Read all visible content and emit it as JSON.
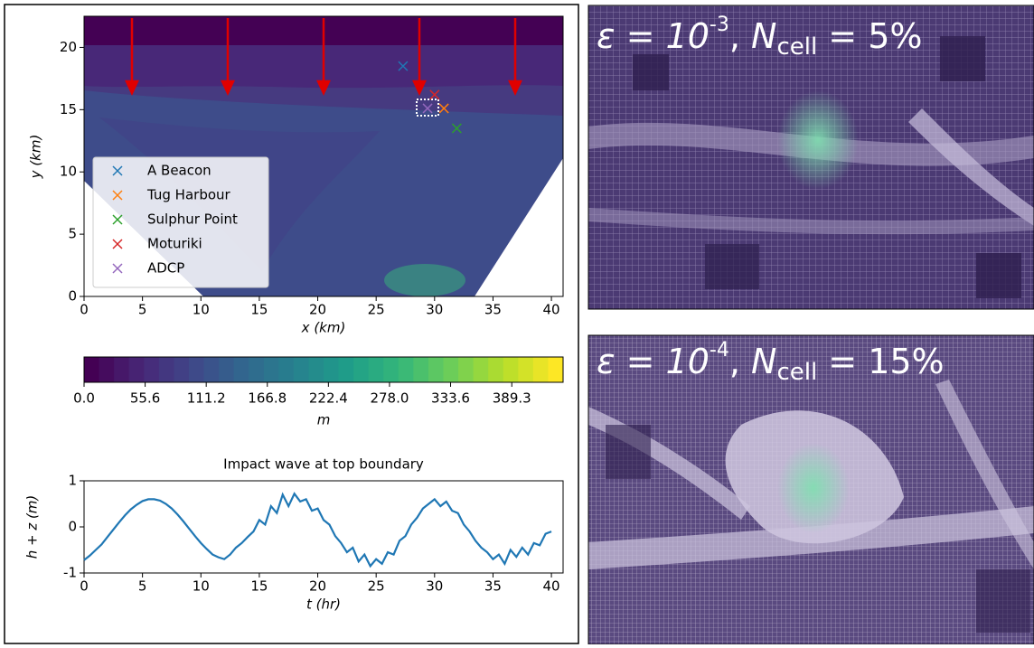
{
  "chart_data": [
    {
      "type": "scatter",
      "xlabel": "x (km)",
      "ylabel": "y (km)",
      "xlim": [
        0,
        41
      ],
      "ylim": [
        0,
        22.5
      ],
      "xticks": [
        0,
        5,
        10,
        15,
        20,
        25,
        30,
        35,
        40
      ],
      "yticks": [
        0,
        5,
        10,
        15,
        20
      ],
      "legend": "center left",
      "series": [
        {
          "name": "A Beacon",
          "color": "#1f77b4",
          "x": [
            27.3
          ],
          "values": [
            18.5
          ]
        },
        {
          "name": "Tug Harbour",
          "color": "#ff7f0e",
          "x": [
            30.8
          ],
          "values": [
            15.1
          ]
        },
        {
          "name": "Sulphur Point",
          "color": "#2ca02c",
          "x": [
            31.9
          ],
          "values": [
            13.5
          ]
        },
        {
          "name": "Moturiki",
          "color": "#d62728",
          "x": [
            30.0
          ],
          "values": [
            16.2
          ]
        },
        {
          "name": "ADCP",
          "color": "#9467bd",
          "x": [
            29.4
          ],
          "values": [
            15.1
          ]
        }
      ]
    },
    {
      "type": "colorbar",
      "label": "m",
      "colormap": "viridis",
      "clim": [
        0,
        436
      ],
      "ticks": [
        {
          "value": 0,
          "label": "0.0"
        },
        55.6,
        111.2,
        166.8,
        222.4,
        {
          "value": 278,
          "label": "278.0"
        },
        333.6,
        389.3
      ]
    },
    {
      "type": "line",
      "title": "Impact wave at top boundary",
      "xlabel": "t (hr)",
      "ylabel": "h + z (m)",
      "color": "#1f77b4",
      "xlim": [
        0,
        41
      ],
      "ylim": [
        -1,
        1
      ],
      "xticks": [
        0,
        5,
        10,
        15,
        20,
        25,
        30,
        35,
        40
      ],
      "yticks": [
        -1,
        0,
        1
      ],
      "x": [
        0,
        0.5,
        1,
        1.5,
        2,
        2.5,
        3,
        3.5,
        4,
        4.5,
        5,
        5.5,
        6,
        6.5,
        7,
        7.5,
        8,
        8.5,
        9,
        9.5,
        10,
        10.5,
        11,
        11.5,
        12,
        12.5,
        13,
        13.5,
        14,
        14.5,
        15,
        15.5,
        16,
        16.5,
        17,
        17.5,
        18,
        18.5,
        19,
        19.5,
        20,
        20.5,
        21,
        21.5,
        22,
        22.5,
        23,
        23.5,
        24,
        24.5,
        25,
        25.5,
        26,
        26.5,
        27,
        27.5,
        28,
        28.5,
        29,
        29.5,
        30,
        30.5,
        31,
        31.5,
        32,
        32.5,
        33,
        33.5,
        34,
        34.5,
        35,
        35.5,
        36,
        36.5,
        37,
        37.5,
        38,
        38.5,
        39,
        39.5,
        40
      ],
      "values": [
        -0.72,
        -0.62,
        -0.5,
        -0.38,
        -0.22,
        -0.06,
        0.1,
        0.25,
        0.38,
        0.48,
        0.56,
        0.6,
        0.6,
        0.57,
        0.5,
        0.4,
        0.27,
        0.12,
        -0.04,
        -0.2,
        -0.35,
        -0.48,
        -0.6,
        -0.66,
        -0.7,
        -0.6,
        -0.45,
        -0.35,
        -0.22,
        -0.1,
        0.15,
        0.05,
        0.45,
        0.3,
        0.7,
        0.45,
        0.72,
        0.55,
        0.6,
        0.35,
        0.4,
        0.15,
        0.05,
        -0.2,
        -0.35,
        -0.55,
        -0.45,
        -0.75,
        -0.6,
        -0.85,
        -0.7,
        -0.8,
        -0.55,
        -0.6,
        -0.3,
        -0.2,
        0.05,
        0.2,
        0.4,
        0.5,
        0.6,
        0.45,
        0.55,
        0.35,
        0.3,
        0.05,
        -0.1,
        -0.3,
        -0.45,
        -0.55,
        -0.7,
        -0.6,
        -0.8,
        -0.5,
        -0.65,
        -0.45,
        -0.6,
        -0.35,
        -0.4,
        -0.15,
        -0.1
      ]
    }
  ],
  "mesh_panels": [
    {
      "parts": [
        "ε = 10",
        "-3",
        ", ",
        "N",
        "cell",
        " = 5%"
      ]
    },
    {
      "parts": [
        "ε = 10",
        "-4",
        ", ",
        "N",
        "cell",
        " = 15%"
      ]
    }
  ]
}
